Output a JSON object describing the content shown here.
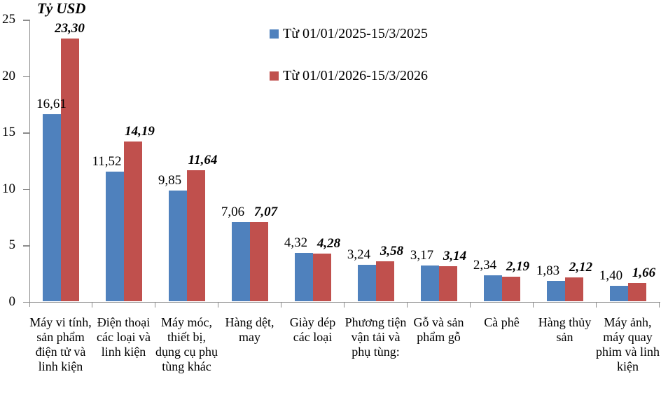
{
  "title": "Tỷ USD",
  "legend": [
    {
      "label": "Từ 01/01/2025-15/3/2025",
      "color": "#4F81BD"
    },
    {
      "label": "Từ 01/01/2026-15/3/2026",
      "color": "#C0504D"
    }
  ],
  "chart_data": {
    "type": "bar",
    "title": "",
    "ylabel": "Tỷ USD",
    "xlabel": "",
    "ylim": [
      0,
      25
    ],
    "yticks": [
      0,
      5,
      10,
      15,
      20,
      25
    ],
    "ytick_labels": [
      "0",
      "5",
      "10",
      "15",
      "20",
      "25"
    ],
    "grid": false,
    "legend_position": "top-center-inside",
    "categories": [
      "Máy vi tính, sản phẩm điện tử và linh kiện",
      "Điện thoại các loại và linh kiện",
      "Máy móc, thiết bị, dụng cụ phụ tùng khác",
      "Hàng dệt, may",
      "Giày dép các loại",
      "Phương tiện vận tải và phụ tùng:",
      "Gỗ và sản phẩm gỗ",
      "Cà phê",
      "Hàng thủy sản",
      "Máy ảnh, máy quay phim và linh kiện"
    ],
    "series": [
      {
        "name": "Từ 01/01/2025-15/3/2025",
        "color": "#4F81BD",
        "values": [
          16.61,
          11.52,
          9.85,
          7.06,
          4.32,
          3.24,
          3.17,
          2.34,
          1.83,
          1.4
        ],
        "value_labels": [
          "16,61",
          "11,52",
          "9,85",
          "7,06",
          "4,32",
          "3,24",
          "3,17",
          "2,34",
          "1,83",
          "1,40"
        ]
      },
      {
        "name": "Từ 01/01/2026-15/3/2026",
        "color": "#C0504D",
        "values": [
          23.3,
          14.19,
          11.64,
          7.07,
          4.28,
          3.58,
          3.14,
          2.19,
          2.12,
          1.66
        ],
        "value_labels": [
          "23,30",
          "14,19",
          "11,64",
          "7,07",
          "4,28",
          "3,58",
          "3,14",
          "2,19",
          "2,12",
          "1,66"
        ]
      }
    ]
  }
}
